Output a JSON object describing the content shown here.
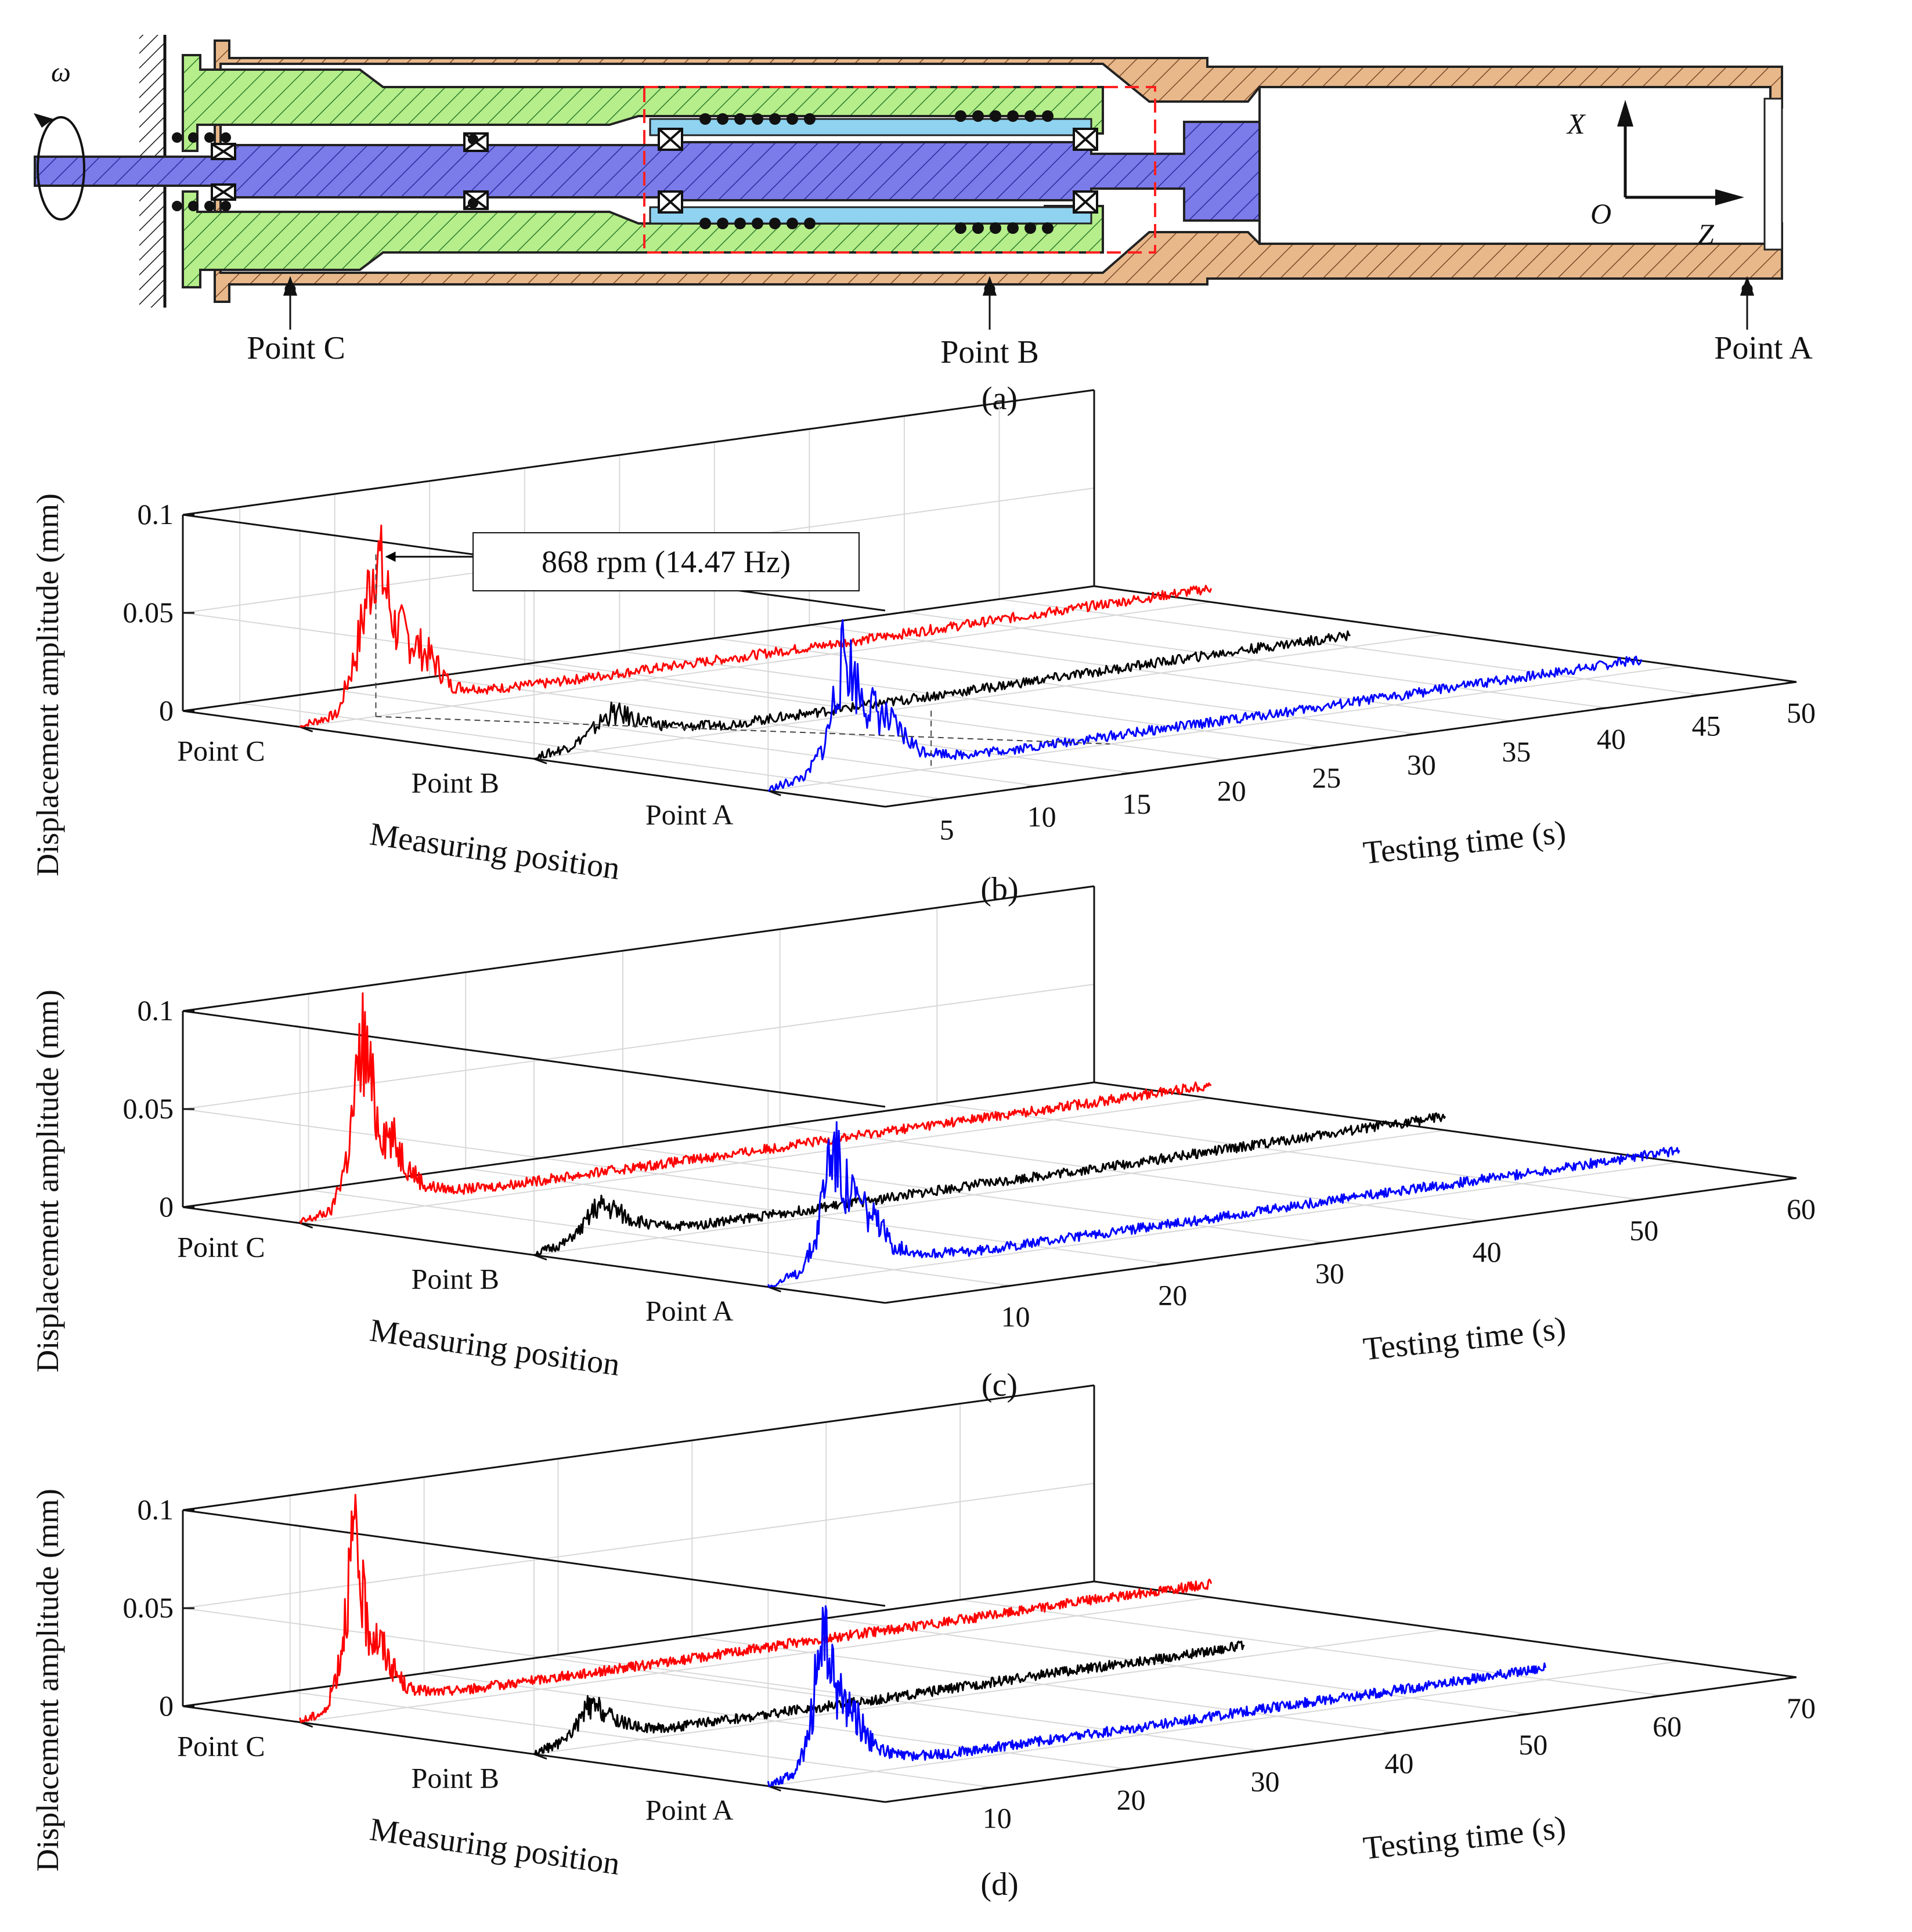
{
  "diagram": {
    "caption": "(a)",
    "omega": "ω",
    "axis_x": "X",
    "axis_o": "O",
    "axis_z": "Z",
    "points": [
      "Point C",
      "Point B",
      "Point A"
    ],
    "colors": {
      "housing": "#e8b88a",
      "sleeve": "#b5ee8a",
      "shaft": "#7b7bea",
      "inner_sleeve": "#8fd3f0",
      "highlight": "#ff2020"
    }
  },
  "chart_data": [
    {
      "type": "line",
      "panel": "(b)",
      "caption": "(b)",
      "title": "",
      "zlabel": "Displacement amplitude (mm)",
      "ylabel": "Measuring position",
      "xlabel": "Testing time (s)",
      "ztick_labels": [
        "0",
        "0.05",
        "0.1"
      ],
      "zlim": [
        0,
        0.1
      ],
      "categories": [
        "Point C",
        "Point B",
        "Point A"
      ],
      "xticks": [
        5,
        10,
        15,
        20,
        25,
        30,
        35,
        40,
        45,
        50
      ],
      "xlim": [
        2,
        50
      ],
      "annotation": "868 rpm (14.47 Hz)",
      "grid": true,
      "series": [
        {
          "name": "Point C",
          "color": "#ff0000",
          "x": [
            2,
            4,
            5,
            6,
            7,
            8,
            9,
            10,
            12,
            15,
            20,
            30,
            40,
            50
          ],
          "values": [
            0,
            0.004,
            0.035,
            0.085,
            0.045,
            0.035,
            0.025,
            0.01,
            0.006,
            0.005,
            0.005,
            0.005,
            0.006,
            0.007
          ]
        },
        {
          "name": "Point B",
          "color": "#000000",
          "x": [
            2,
            4,
            5,
            6,
            7,
            8,
            10,
            12,
            15,
            20,
            30,
            40,
            45
          ],
          "values": [
            0,
            0.004,
            0.01,
            0.018,
            0.015,
            0.01,
            0.006,
            0.004,
            0.004,
            0.004,
            0.005,
            0.006,
            0.006
          ]
        },
        {
          "name": "Point A",
          "color": "#0000ff",
          "x": [
            2,
            4,
            5,
            6,
            7,
            8,
            10,
            12,
            15,
            20,
            30,
            40,
            48
          ],
          "values": [
            0,
            0.005,
            0.02,
            0.065,
            0.04,
            0.03,
            0.01,
            0.005,
            0.004,
            0.004,
            0.004,
            0.005,
            0.006
          ]
        }
      ]
    },
    {
      "type": "line",
      "panel": "(c)",
      "caption": "(c)",
      "title": "",
      "zlabel": "Displacement amplitude (mm)",
      "ylabel": "Measuring position",
      "xlabel": "Testing time (s)",
      "ztick_labels": [
        "0",
        "0.05",
        "0.1"
      ],
      "zlim": [
        0,
        0.1
      ],
      "categories": [
        "Point C",
        "Point B",
        "Point A"
      ],
      "xticks": [
        10,
        20,
        30,
        40,
        50,
        60
      ],
      "xlim": [
        2,
        60
      ],
      "annotation": "",
      "grid": true,
      "series": [
        {
          "name": "Point C",
          "color": "#ff0000",
          "x": [
            2,
            4,
            5,
            6,
            7,
            8,
            9,
            10,
            12,
            15,
            20,
            30,
            40,
            50,
            60
          ],
          "values": [
            0,
            0.004,
            0.03,
            0.09,
            0.045,
            0.035,
            0.02,
            0.01,
            0.006,
            0.005,
            0.005,
            0.005,
            0.006,
            0.006,
            0.007
          ]
        },
        {
          "name": "Point B",
          "color": "#000000",
          "x": [
            2,
            4,
            5,
            6,
            7,
            8,
            10,
            12,
            15,
            20,
            30,
            40,
            50,
            60
          ],
          "values": [
            0,
            0.004,
            0.01,
            0.02,
            0.018,
            0.012,
            0.006,
            0.004,
            0.004,
            0.004,
            0.005,
            0.005,
            0.006,
            0.007
          ]
        },
        {
          "name": "Point A",
          "color": "#0000ff",
          "x": [
            2,
            4,
            5,
            6,
            7,
            8,
            10,
            12,
            15,
            20,
            30,
            40,
            50,
            60
          ],
          "values": [
            0,
            0.005,
            0.02,
            0.07,
            0.045,
            0.035,
            0.012,
            0.006,
            0.004,
            0.004,
            0.004,
            0.005,
            0.005,
            0.006
          ]
        }
      ]
    },
    {
      "type": "line",
      "panel": "(d)",
      "caption": "(d)",
      "title": "",
      "zlabel": "Displacement amplitude (mm)",
      "ylabel": "Measuring position",
      "xlabel": "Testing time (s)",
      "ztick_labels": [
        "0",
        "0.05",
        "0.1"
      ],
      "zlim": [
        0,
        0.1
      ],
      "categories": [
        "Point C",
        "Point B",
        "Point A"
      ],
      "xticks": [
        10,
        20,
        30,
        40,
        50,
        60,
        70
      ],
      "xlim": [
        2,
        70
      ],
      "annotation": "",
      "grid": true,
      "series": [
        {
          "name": "Point C",
          "color": "#ff0000",
          "x": [
            2,
            4,
            5,
            6,
            7,
            8,
            9,
            10,
            12,
            15,
            20,
            30,
            40,
            50,
            60,
            70
          ],
          "values": [
            0,
            0.004,
            0.03,
            0.09,
            0.045,
            0.035,
            0.02,
            0.01,
            0.006,
            0.005,
            0.005,
            0.005,
            0.006,
            0.006,
            0.007,
            0.007
          ]
        },
        {
          "name": "Point B",
          "color": "#000000",
          "x": [
            2,
            4,
            5,
            6,
            7,
            8,
            10,
            12,
            15,
            20,
            30,
            40,
            50,
            55
          ],
          "values": [
            0,
            0.004,
            0.01,
            0.02,
            0.018,
            0.012,
            0.006,
            0.004,
            0.004,
            0.004,
            0.004,
            0.005,
            0.005,
            0.006
          ]
        },
        {
          "name": "Point A",
          "color": "#0000ff",
          "x": [
            2,
            4,
            5,
            6,
            7,
            8,
            10,
            12,
            15,
            20,
            30,
            40,
            50,
            60
          ],
          "values": [
            0,
            0.005,
            0.02,
            0.075,
            0.045,
            0.035,
            0.012,
            0.006,
            0.004,
            0.004,
            0.004,
            0.005,
            0.005,
            0.006
          ]
        }
      ]
    }
  ]
}
